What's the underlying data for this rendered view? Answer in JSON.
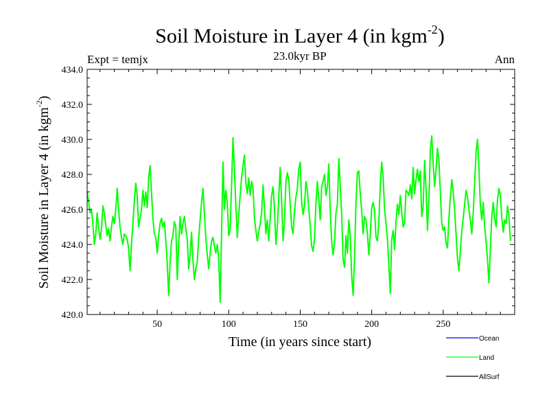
{
  "chart_data": {
    "type": "line",
    "title": {
      "main": "Soil Moisture in Layer 4 (in kgm",
      "sup": "-2",
      "close": ")"
    },
    "subtitle": "23.0kyr BP",
    "left_label": "Expt = temjx",
    "right_label": "Ann",
    "xlabel": "Time (in years since start)",
    "ylabel": {
      "main": "Soil Moisture in Layer 4 (in kgm",
      "sup": "-2",
      "close": ")"
    },
    "xlim": [
      1,
      300
    ],
    "ylim": [
      420.0,
      434.0
    ],
    "x_ticks": [
      50,
      100,
      150,
      200,
      250
    ],
    "y_ticks": [
      "420.0",
      "422.0",
      "424.0",
      "426.0",
      "428.0",
      "430.0",
      "432.0",
      "434.0"
    ],
    "legend": [
      {
        "name": "Ocean",
        "color": "#0000ff"
      },
      {
        "name": "Land",
        "color": "#00ff00"
      },
      {
        "name": "AllSurf",
        "color": "#000000"
      }
    ],
    "series": [
      {
        "name": "Land",
        "color": "#00ff00",
        "x_start": 1,
        "x_step": 1,
        "values": [
          427.0,
          426.5,
          425.8,
          426.0,
          425.2,
          424.0,
          424.6,
          425.8,
          425.0,
          424.3,
          424.8,
          426.2,
          425.8,
          425.1,
          424.5,
          424.9,
          424.2,
          425.0,
          425.6,
          425.2,
          426.0,
          427.2,
          426.0,
          425.0,
          424.4,
          424.0,
          424.6,
          424.5,
          424.3,
          423.8,
          422.5,
          424.0,
          425.2,
          426.5,
          427.5,
          426.8,
          425.0,
          425.5,
          426.0,
          427.1,
          426.2,
          427.0,
          426.1,
          427.8,
          428.5,
          427.0,
          425.5,
          424.6,
          424.4,
          423.5,
          424.5,
          425.2,
          425.5,
          425.0,
          425.3,
          424.2,
          422.9,
          421.1,
          423.0,
          424.2,
          424.5,
          425.3,
          425.0,
          422.0,
          424.0,
          425.6,
          424.6,
          425.2,
          425.6,
          424.9,
          424.3,
          422.6,
          423.4,
          424.7,
          423.1,
          422.0,
          422.6,
          423.0,
          424.3,
          425.4,
          426.4,
          427.2,
          425.7,
          424.4,
          423.4,
          422.6,
          423.5,
          424.2,
          424.4,
          423.9,
          423.5,
          424.0,
          423.2,
          420.7,
          424.6,
          428.7,
          426.0,
          427.1,
          426.4,
          424.5,
          424.8,
          427.4,
          430.1,
          428.3,
          426.2,
          424.4,
          425.7,
          426.8,
          427.8,
          428.5,
          429.1,
          427.5,
          426.9,
          427.8,
          426.8,
          427.6,
          427.2,
          425.5,
          424.8,
          424.2,
          424.7,
          425.2,
          425.8,
          427.4,
          426.1,
          424.6,
          425.4,
          424.2,
          425.5,
          426.8,
          427.3,
          426.1,
          424.0,
          425.0,
          426.7,
          428.4,
          426.5,
          424.2,
          425.3,
          427.6,
          428.1,
          427.7,
          426.3,
          425.0,
          424.6,
          425.9,
          426.7,
          427.2,
          428.3,
          428.7,
          426.4,
          425.7,
          426.2,
          427.6,
          427.1,
          426.0,
          425.1,
          423.9,
          423.6,
          424.3,
          426.3,
          427.6,
          426.6,
          425.4,
          427.3,
          427.6,
          428.0,
          426.8,
          427.3,
          428.6,
          425.9,
          424.2,
          423.4,
          424.1,
          425.8,
          426.3,
          428.9,
          427.4,
          425.7,
          423.1,
          422.7,
          424.5,
          423.5,
          425.4,
          424.5,
          422.2,
          421.1,
          423.2,
          426.4,
          428.1,
          428.2,
          426.9,
          425.9,
          424.6,
          425.6,
          425.4,
          424.6,
          423.4,
          424.6,
          426.1,
          426.4,
          425.9,
          424.4,
          424.2,
          425.3,
          427.4,
          428.7,
          427.8,
          426.0,
          425.2,
          424.3,
          422.8,
          421.2,
          424.3,
          424.8,
          423.7,
          425.3,
          426.3,
          425.7,
          426.8,
          425.8,
          425.0,
          425.2,
          427.1,
          427.0,
          426.8,
          427.4,
          426.6,
          428.4,
          426.9,
          427.7,
          428.3,
          427.6,
          428.2,
          425.6,
          426.2,
          428.8,
          427.2,
          424.8,
          426.5,
          429.4,
          430.2,
          428.6,
          427.3,
          428.3,
          429.5,
          428.8,
          427.0,
          425.2,
          424.8,
          425.0,
          424.1,
          423.8,
          425.5,
          426.7,
          427.7,
          427.0,
          426.0,
          424.6,
          423.2,
          422.5,
          423.6,
          424.8,
          425.5,
          426.3,
          427.1,
          426.7,
          426.0,
          425.4,
          424.6,
          425.8,
          427.5,
          429.3,
          430.0,
          428.4,
          426.2,
          425.4,
          426.4,
          425.0,
          424.2,
          423.1,
          421.8,
          423.8,
          425.6,
          426.4,
          425.5,
          425.0,
          426.6,
          427.2,
          426.8,
          425.5,
          424.7,
          425.4,
          425.2,
          426.2,
          425.6,
          424.2
        ]
      }
    ]
  }
}
